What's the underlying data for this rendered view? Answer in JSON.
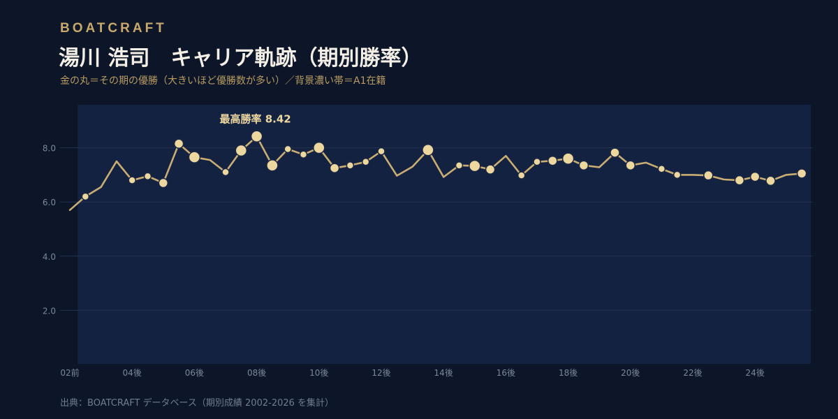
{
  "header": {
    "brand": "BOATCRAFT",
    "title": "湯川 浩司　キャリア軌跡（期別勝率）",
    "subtitle": "金の丸＝その期の優勝（大きいほど優勝数が多い）／背景濃い帯＝A1在籍"
  },
  "footer": {
    "source": "出典：BOATCRAFT データベース（期別成績 2002-2026 を集計）"
  },
  "colors": {
    "background": "#0c1628",
    "a1_band": "#142241",
    "line": "#c9ad72",
    "marker_fill": "#ecd79f",
    "marker_stroke": "#1a2744",
    "gridline": "#233250",
    "tick_label": "#7c879c",
    "annotation": "#ecd79f"
  },
  "chart_data": {
    "type": "line",
    "title": "湯川 浩司　キャリア軌跡（期別勝率）",
    "xlabel": "",
    "ylabel": "",
    "ylim": [
      0,
      9.6
    ],
    "y_ticks": [
      2.0,
      4.0,
      6.0,
      8.0
    ],
    "y_tick_labels": [
      "2.0",
      "4.0",
      "6.0",
      "8.0"
    ],
    "x_tick_labels": [
      "02前",
      "04後",
      "06後",
      "08後",
      "10後",
      "12後",
      "14後",
      "16後",
      "18後",
      "20後",
      "22後",
      "24後"
    ],
    "x_tick_index": [
      0,
      4,
      8,
      12,
      16,
      20,
      24,
      28,
      32,
      36,
      40,
      44
    ],
    "grid": true,
    "a1_band": {
      "from_index": 0.5,
      "to_index": 48.5
    },
    "annotation": {
      "text": "最高勝率 8.42",
      "index": 12,
      "value": 8.42
    },
    "series": [
      {
        "values": [
          5.7,
          6.2,
          6.55,
          7.5,
          6.8,
          6.95,
          6.7,
          8.15,
          7.65,
          7.55,
          7.1,
          7.9,
          8.42,
          7.35,
          7.95,
          7.75,
          8.0,
          7.25,
          7.35,
          7.48,
          7.87,
          6.97,
          7.3,
          7.92,
          6.92,
          7.35,
          7.33,
          7.2,
          7.7,
          6.98,
          7.48,
          7.52,
          7.6,
          7.35,
          7.28,
          7.82,
          7.35,
          7.45,
          7.22,
          7.0,
          7.0,
          6.98,
          6.83,
          6.8,
          6.93,
          6.78,
          7.0,
          7.05
        ],
        "championships": [
          0,
          1,
          0,
          0,
          1,
          1,
          2,
          2,
          3,
          0,
          1,
          3,
          3,
          3,
          1,
          1,
          3,
          2,
          1,
          1,
          1,
          0,
          0,
          3,
          0,
          1,
          3,
          2,
          0,
          1,
          1,
          2,
          3,
          2,
          0,
          2,
          2,
          0,
          1,
          1,
          0,
          2,
          0,
          2,
          2,
          2,
          0,
          2
        ]
      }
    ]
  }
}
